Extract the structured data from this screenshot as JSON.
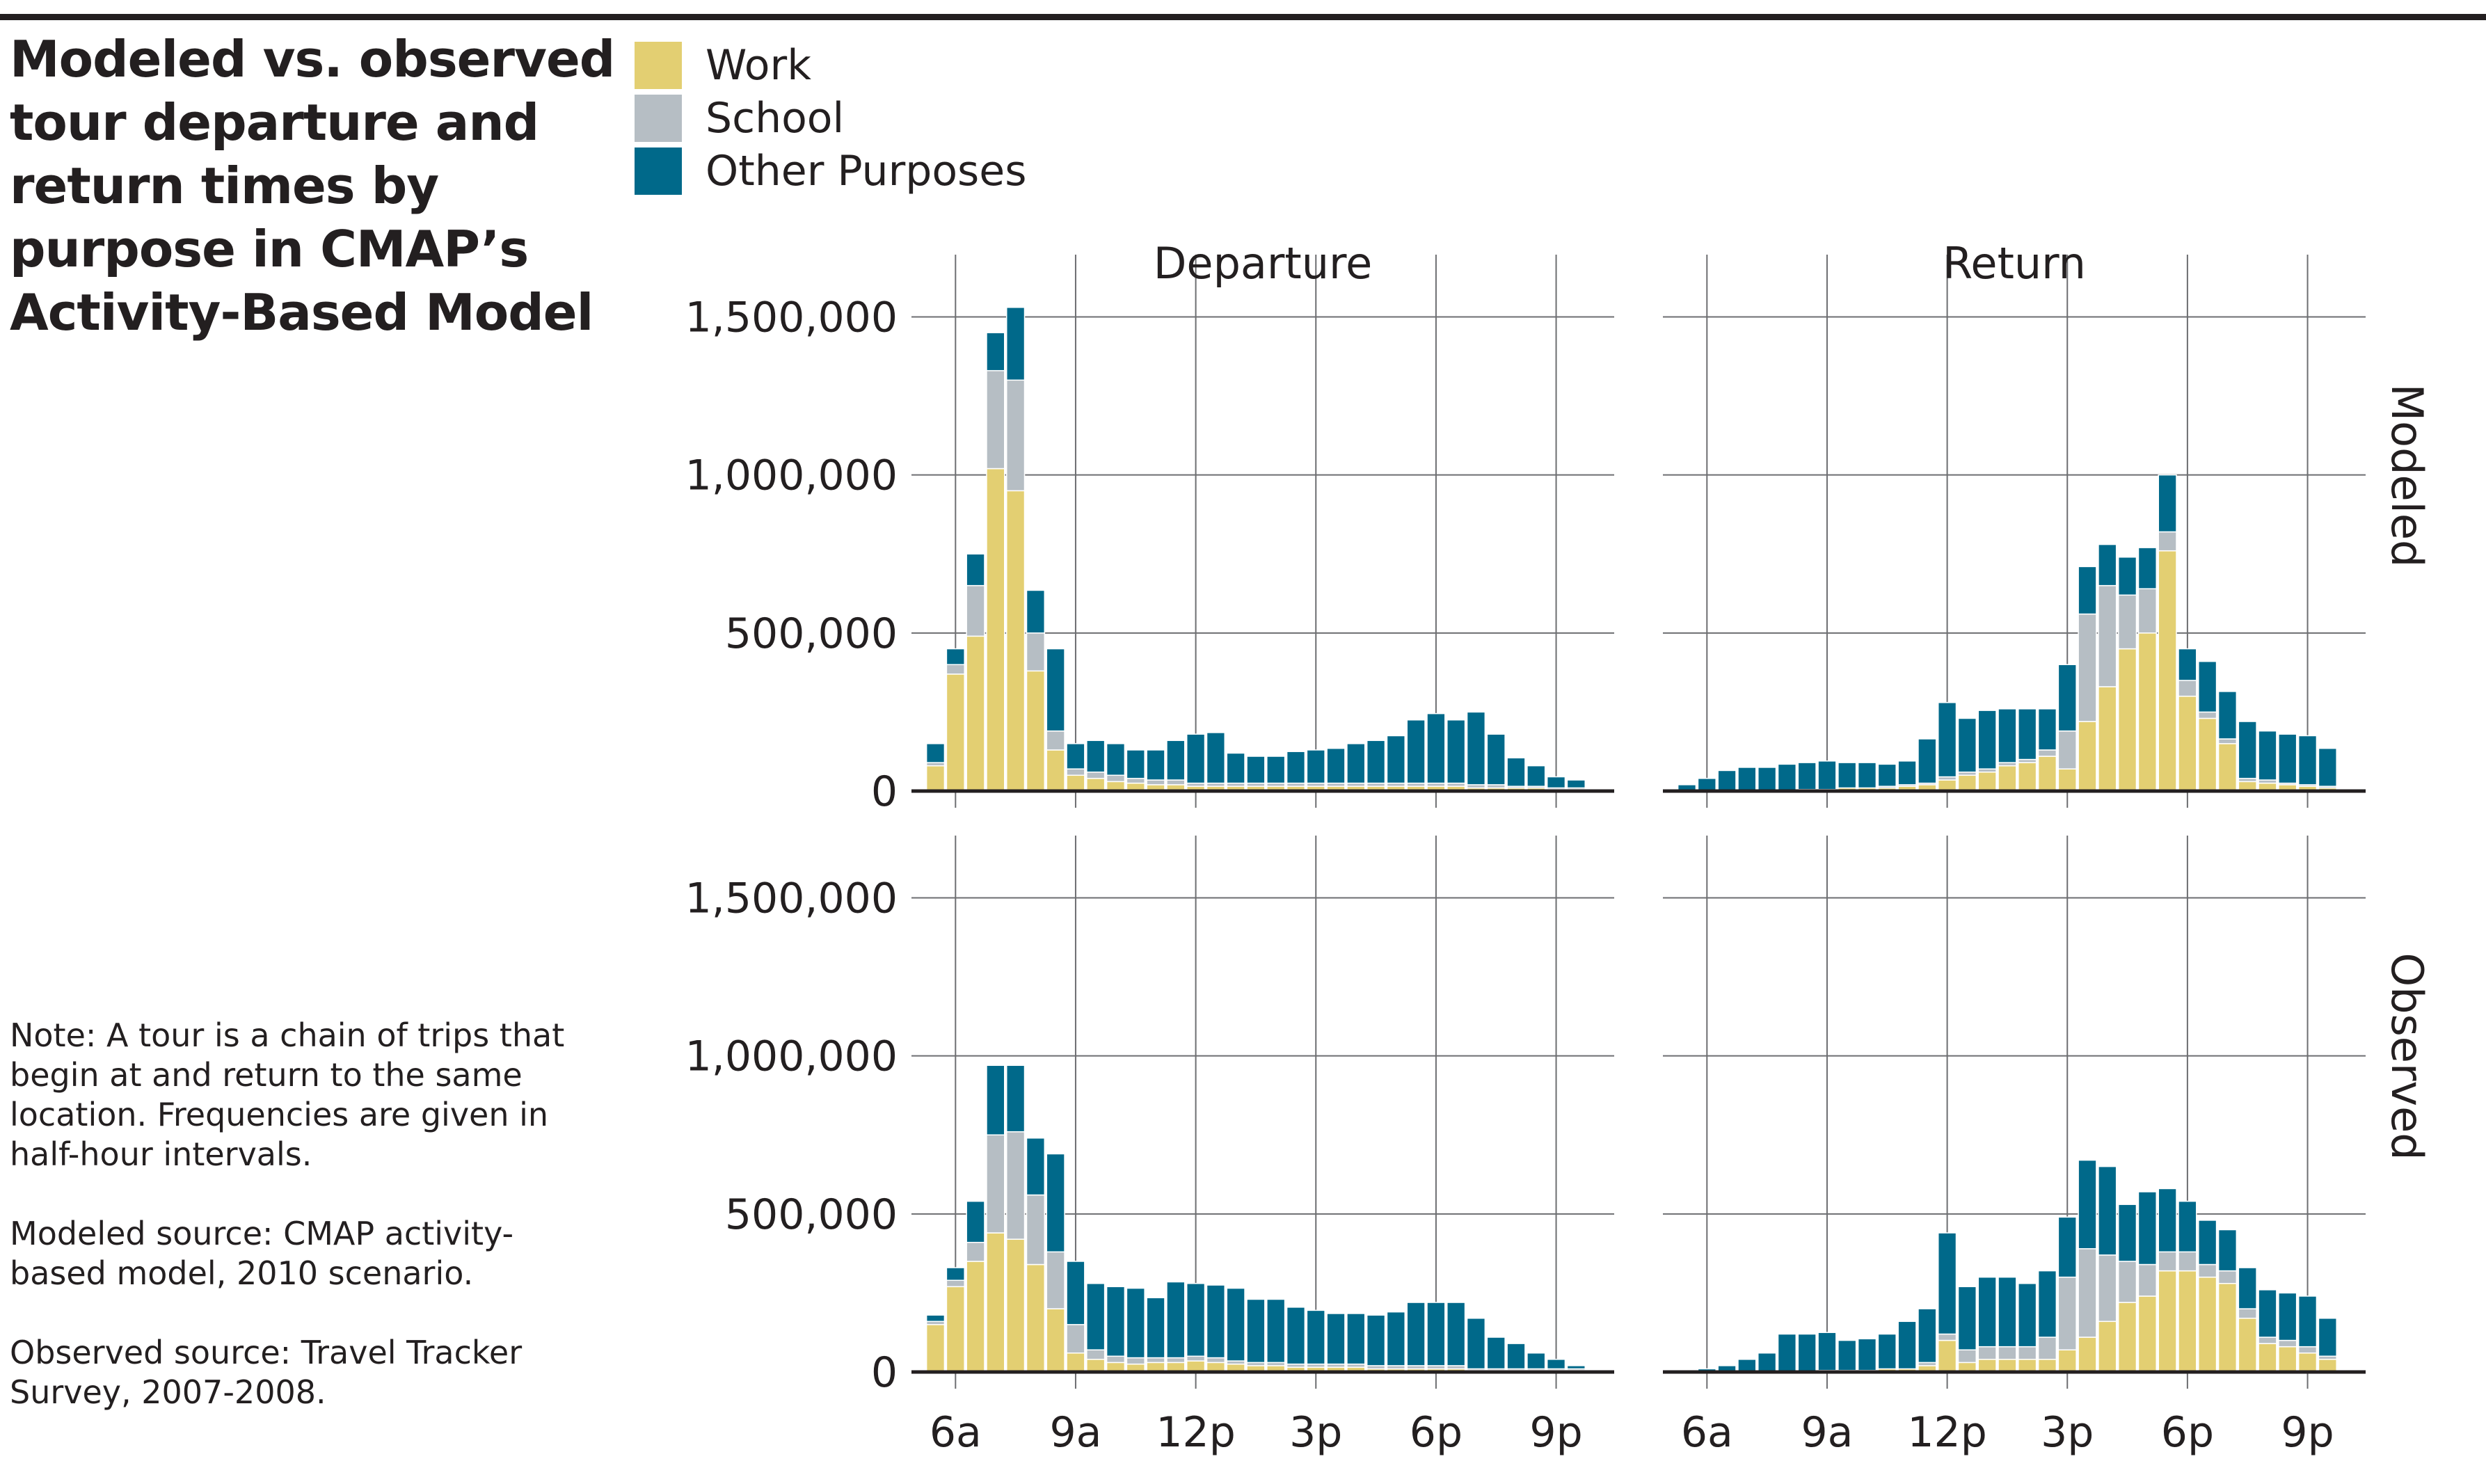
{
  "title": "Modeled vs. observed tour departure and return times by purpose in CMAP’s Activity-Based Model",
  "notes": [
    "Note: A tour is a chain of trips that begin at and return to the same location. Frequencies are given in half-hour intervals.",
    "Modeled source: CMAP activity-based model, 2010 scenario.",
    "Observed source: Travel Tracker Survey, 2007-2008."
  ],
  "legend": [
    {
      "label": "Work",
      "color": "#e3cf72"
    },
    {
      "label": "School",
      "color": "#b6bec4"
    },
    {
      "label": "Other Purposes",
      "color": "#00698a"
    }
  ],
  "chart_data": {
    "type": "bar",
    "stacked": true,
    "facets": {
      "columns": [
        "Departure",
        "Return"
      ],
      "rows": [
        "Modeled",
        "Observed"
      ]
    },
    "x_unit": "half-hour interval (hours after midnight)",
    "x_ticks": {
      "values": [
        6,
        9,
        12,
        15,
        18,
        21
      ],
      "labels": [
        "6a",
        "9a",
        "12p",
        "3p",
        "6p",
        "9p"
      ]
    },
    "y_ticks": {
      "values": [
        0,
        500000,
        1000000,
        1500000
      ],
      "labels": [
        "0",
        "500,000",
        "1,000,000",
        "1,500,000"
      ]
    },
    "ylim": [
      0,
      1600000
    ],
    "grid": true,
    "legend_position": "top-left",
    "series_names": [
      "Work",
      "School",
      "Other Purposes"
    ],
    "panels": [
      {
        "column": "Departure",
        "row": "Modeled",
        "x": [
          5.5,
          6,
          6.5,
          7,
          7.5,
          8,
          8.5,
          9,
          9.5,
          10,
          10.5,
          11,
          11.5,
          12,
          12.5,
          13,
          13.5,
          14,
          14.5,
          15,
          15.5,
          16,
          16.5,
          17,
          17.5,
          18,
          18.5,
          19,
          19.5,
          20,
          20.5,
          21,
          21.5
        ],
        "work": [
          80000,
          370000,
          490000,
          1020000,
          950000,
          380000,
          130000,
          50000,
          40000,
          30000,
          25000,
          20000,
          20000,
          15000,
          15000,
          15000,
          15000,
          15000,
          15000,
          15000,
          15000,
          15000,
          15000,
          15000,
          15000,
          15000,
          15000,
          10000,
          10000,
          10000,
          10000,
          5000,
          5000
        ],
        "school": [
          10000,
          30000,
          160000,
          310000,
          350000,
          120000,
          60000,
          20000,
          20000,
          20000,
          15000,
          15000,
          15000,
          10000,
          10000,
          10000,
          10000,
          10000,
          10000,
          10000,
          10000,
          10000,
          10000,
          10000,
          10000,
          10000,
          10000,
          10000,
          10000,
          5000,
          5000,
          5000,
          5000
        ],
        "other": [
          60000,
          50000,
          100000,
          120000,
          230000,
          135000,
          260000,
          80000,
          100000,
          100000,
          90000,
          95000,
          125000,
          155000,
          160000,
          95000,
          85000,
          85000,
          100000,
          105000,
          110000,
          125000,
          135000,
          150000,
          200000,
          220000,
          200000,
          230000,
          160000,
          90000,
          65000,
          35000,
          25000
        ]
      },
      {
        "column": "Return",
        "row": "Modeled",
        "x": [
          5.5,
          6,
          6.5,
          7,
          7.5,
          8,
          8.5,
          9,
          9.5,
          10,
          10.5,
          11,
          11.5,
          12,
          12.5,
          13,
          13.5,
          14,
          14.5,
          15,
          15.5,
          16,
          16.5,
          17,
          17.5,
          18,
          18.5,
          19,
          19.5,
          20,
          20.5,
          21,
          21.5
        ],
        "work": [
          0,
          0,
          0,
          0,
          0,
          0,
          5000,
          5000,
          10000,
          10000,
          10000,
          15000,
          20000,
          35000,
          50000,
          60000,
          80000,
          90000,
          110000,
          70000,
          220000,
          330000,
          450000,
          500000,
          760000,
          300000,
          230000,
          150000,
          30000,
          25000,
          20000,
          15000,
          10000
        ],
        "school": [
          0,
          0,
          0,
          0,
          0,
          0,
          0,
          0,
          0,
          0,
          5000,
          5000,
          5000,
          10000,
          10000,
          10000,
          10000,
          10000,
          20000,
          120000,
          340000,
          320000,
          170000,
          140000,
          60000,
          50000,
          20000,
          15000,
          10000,
          10000,
          5000,
          5000,
          5000
        ],
        "other": [
          20000,
          40000,
          65000,
          75000,
          75000,
          85000,
          85000,
          90000,
          80000,
          80000,
          70000,
          75000,
          140000,
          235000,
          170000,
          185000,
          170000,
          160000,
          130000,
          210000,
          150000,
          130000,
          120000,
          130000,
          180000,
          100000,
          160000,
          150000,
          180000,
          155000,
          155000,
          155000,
          120000
        ]
      },
      {
        "column": "Departure",
        "row": "Observed",
        "x": [
          5.5,
          6,
          6.5,
          7,
          7.5,
          8,
          8.5,
          9,
          9.5,
          10,
          10.5,
          11,
          11.5,
          12,
          12.5,
          13,
          13.5,
          14,
          14.5,
          15,
          15.5,
          16,
          16.5,
          17,
          17.5,
          18,
          18.5,
          19,
          19.5,
          20,
          20.5,
          21,
          21.5
        ],
        "work": [
          150000,
          270000,
          350000,
          440000,
          420000,
          340000,
          200000,
          60000,
          40000,
          30000,
          25000,
          30000,
          30000,
          35000,
          30000,
          25000,
          20000,
          20000,
          15000,
          15000,
          15000,
          15000,
          10000,
          10000,
          10000,
          10000,
          10000,
          5000,
          5000,
          5000,
          5000,
          5000,
          5000
        ],
        "school": [
          10000,
          20000,
          60000,
          310000,
          340000,
          220000,
          180000,
          90000,
          30000,
          20000,
          20000,
          15000,
          15000,
          15000,
          15000,
          10000,
          10000,
          10000,
          10000,
          10000,
          10000,
          10000,
          10000,
          10000,
          10000,
          10000,
          10000,
          5000,
          5000,
          5000,
          5000,
          5000,
          5000
        ],
        "other": [
          20000,
          40000,
          130000,
          220000,
          210000,
          180000,
          310000,
          200000,
          210000,
          220000,
          220000,
          190000,
          240000,
          230000,
          230000,
          230000,
          200000,
          200000,
          180000,
          170000,
          160000,
          160000,
          160000,
          170000,
          200000,
          200000,
          200000,
          160000,
          100000,
          80000,
          50000,
          30000,
          10000
        ]
      },
      {
        "column": "Return",
        "row": "Observed",
        "x": [
          5.5,
          6,
          6.5,
          7,
          7.5,
          8,
          8.5,
          9,
          9.5,
          10,
          10.5,
          11,
          11.5,
          12,
          12.5,
          13,
          13.5,
          14,
          14.5,
          15,
          15.5,
          16,
          16.5,
          17,
          17.5,
          18,
          18.5,
          19,
          19.5,
          20,
          20.5,
          21,
          21.5
        ],
        "work": [
          0,
          0,
          0,
          0,
          0,
          0,
          0,
          5000,
          5000,
          5000,
          10000,
          10000,
          20000,
          100000,
          30000,
          40000,
          40000,
          40000,
          40000,
          70000,
          110000,
          160000,
          220000,
          240000,
          320000,
          320000,
          300000,
          280000,
          170000,
          90000,
          80000,
          60000,
          40000
        ],
        "school": [
          0,
          0,
          0,
          0,
          0,
          0,
          0,
          0,
          0,
          0,
          0,
          0,
          10000,
          20000,
          40000,
          40000,
          40000,
          40000,
          70000,
          230000,
          280000,
          210000,
          130000,
          100000,
          60000,
          60000,
          40000,
          40000,
          30000,
          20000,
          20000,
          20000,
          10000
        ],
        "other": [
          0,
          10000,
          20000,
          40000,
          60000,
          120000,
          120000,
          120000,
          95000,
          100000,
          110000,
          150000,
          170000,
          320000,
          200000,
          220000,
          220000,
          200000,
          210000,
          190000,
          280000,
          280000,
          180000,
          230000,
          200000,
          160000,
          140000,
          130000,
          130000,
          150000,
          150000,
          160000,
          120000
        ]
      }
    ]
  }
}
